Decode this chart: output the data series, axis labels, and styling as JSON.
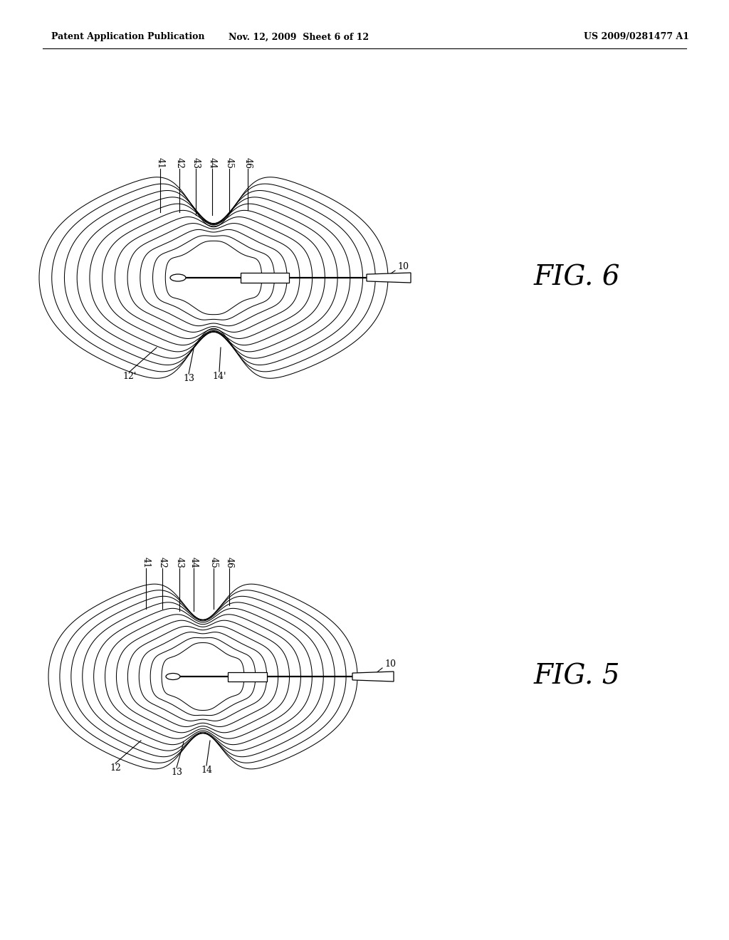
{
  "bg_color": "#ffffff",
  "line_color": "#000000",
  "header_left": "Patent Application Publication",
  "header_mid": "Nov. 12, 2009  Sheet 6 of 12",
  "header_right": "US 2009/0281477 A1",
  "fig6_label": "FIG. 6",
  "fig5_label": "FIG. 5",
  "lobe_labels_top": [
    "41",
    "42",
    "43",
    "44",
    "45",
    "46"
  ],
  "fig6_bottom_labels": [
    "12'",
    "13",
    "14'"
  ],
  "fig5_bottom_labels": [
    "12",
    "13",
    "14"
  ],
  "label_10": "10"
}
